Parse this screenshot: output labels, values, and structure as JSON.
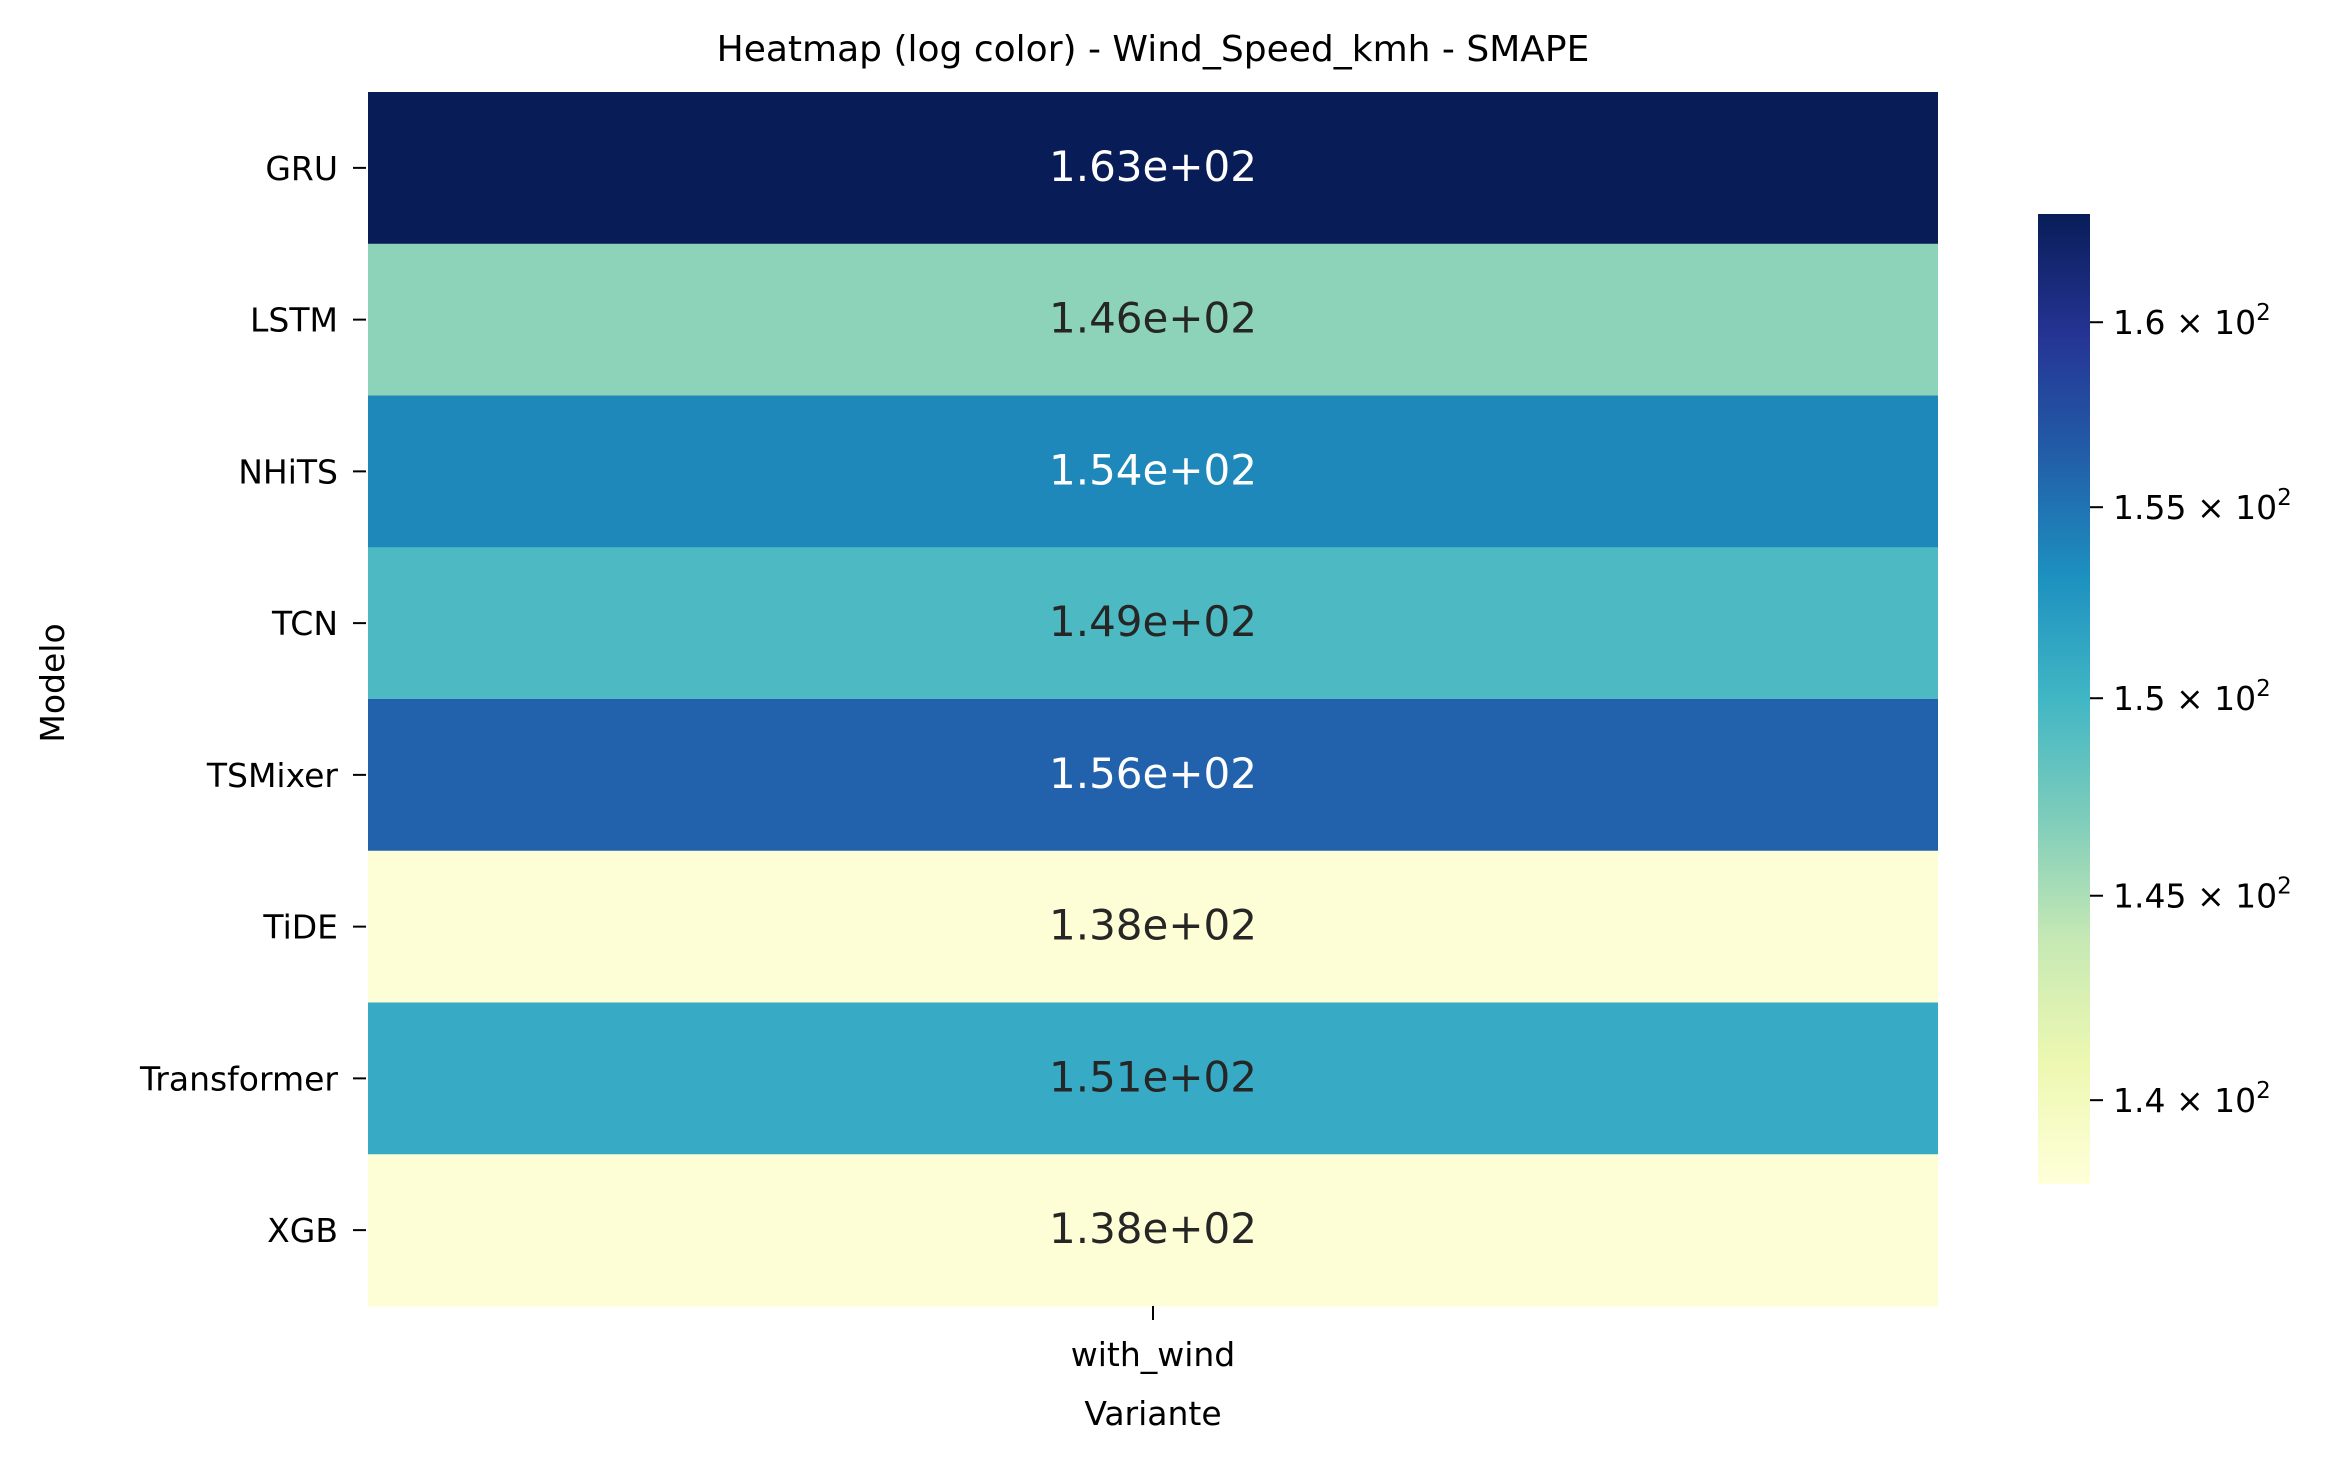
{
  "chart_data": {
    "type": "heatmap",
    "title": "Heatmap (log color) - Wind_Speed_kmh - SMAPE",
    "xlabel": "Variante",
    "ylabel": "Modelo",
    "columns": [
      "with_wind"
    ],
    "rows": [
      "GRU",
      "LSTM",
      "NHiTS",
      "TCN",
      "TSMixer",
      "TiDE",
      "Transformer",
      "XGB"
    ],
    "values": [
      [
        163
      ],
      [
        146
      ],
      [
        154
      ],
      [
        149
      ],
      [
        156
      ],
      [
        138
      ],
      [
        151
      ],
      [
        138
      ]
    ],
    "cell_labels": [
      [
        "1.63e+02"
      ],
      [
        "1.46e+02"
      ],
      [
        "1.54e+02"
      ],
      [
        "1.49e+02"
      ],
      [
        "1.56e+02"
      ],
      [
        "1.38e+02"
      ],
      [
        "1.51e+02"
      ],
      [
        "1.38e+02"
      ]
    ],
    "colormap": "YlGnBu",
    "color_scale": "log",
    "color_range": [
      138,
      163
    ],
    "colorbar": {
      "ticks": [
        140,
        145,
        150,
        155,
        160
      ],
      "tick_labels": [
        {
          "mantissa": "1.4",
          "exponent": "2"
        },
        {
          "mantissa": "1.45",
          "exponent": "2"
        },
        {
          "mantissa": "1.5",
          "exponent": "2"
        },
        {
          "mantissa": "1.55",
          "exponent": "2"
        },
        {
          "mantissa": "1.6",
          "exponent": "2"
        }
      ]
    },
    "cell_colors": [
      "#081d58",
      "#8dd3ba",
      "#1f88ba",
      "#4db9c2",
      "#2262ac",
      "#fdfed6",
      "#37abc5",
      "#fdfed6"
    ],
    "grid": false,
    "legend": "colorbar-right"
  }
}
